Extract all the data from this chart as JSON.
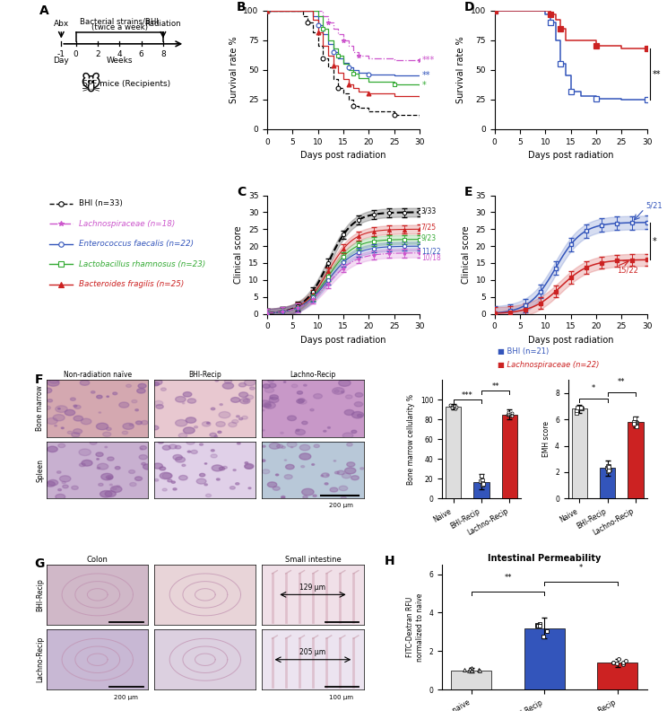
{
  "panel_labels": [
    "A",
    "B",
    "C",
    "D",
    "E",
    "F",
    "G",
    "H"
  ],
  "legend_entries": [
    {
      "label": "BHI (n=33)",
      "color": "#000000",
      "marker": "o",
      "linestyle": "--",
      "italic": false
    },
    {
      "label": "Lachnospiraceae (n=18)",
      "color": "#cc55cc",
      "marker": "*",
      "linestyle": "-.",
      "italic": true
    },
    {
      "label": "Enterococcus faecalis (n=22)",
      "color": "#3355bb",
      "marker": "o",
      "linestyle": "-",
      "italic": true
    },
    {
      "label": "Lactobacillus rhamnosus (n=23)",
      "color": "#33aa33",
      "marker": "s",
      "linestyle": "-",
      "italic": true
    },
    {
      "label": "Bacteroides fragilis (n=25)",
      "color": "#cc2222",
      "marker": "^",
      "linestyle": "-",
      "italic": true
    }
  ],
  "colors": {
    "BHI": "#000000",
    "Lachnospiraceae": "#cc55cc",
    "Enterococcus": "#3355bb",
    "Lactobacillus": "#33aa33",
    "Bacteroides": "#cc2222",
    "BHI_blue": "#3355bb",
    "Lachno_red": "#cc2222"
  },
  "panel_F_bar1": {
    "categories": [
      "Naive",
      "BHI-Recip",
      "Lachno-Recip"
    ],
    "values": [
      93,
      17,
      85
    ],
    "errors": [
      3,
      8,
      5
    ],
    "colors": [
      "#dddddd",
      "#3355bb",
      "#cc2222"
    ],
    "ylabel": "Bone marrow cellularity %",
    "ylim": [
      0,
      120
    ],
    "yticks": [
      0,
      20,
      40,
      60,
      80,
      100
    ]
  },
  "panel_F_bar2": {
    "categories": [
      "Naive",
      "BHI-Recip",
      "Lachno-Recip"
    ],
    "values": [
      6.8,
      2.3,
      5.8
    ],
    "errors": [
      0.3,
      0.6,
      0.4
    ],
    "colors": [
      "#dddddd",
      "#3355bb",
      "#cc2222"
    ],
    "ylabel": "EMH score",
    "ylim": [
      0,
      9
    ],
    "yticks": [
      0,
      2,
      4,
      6,
      8
    ]
  },
  "panel_H": {
    "title": "Intestinal Permeability",
    "ylabel": "FITC-Dextran RFU\nnormalized to naive",
    "categories": [
      "Non-radiation naive",
      "BHI-Recip",
      "Lachno-Recip"
    ],
    "values": [
      1.0,
      3.2,
      1.4
    ],
    "errors": [
      0.12,
      0.55,
      0.22
    ],
    "colors": [
      "#dddddd",
      "#3355bb",
      "#cc2222"
    ],
    "ylim": [
      0,
      6.5
    ],
    "yticks": [
      0,
      2,
      4,
      6
    ]
  }
}
